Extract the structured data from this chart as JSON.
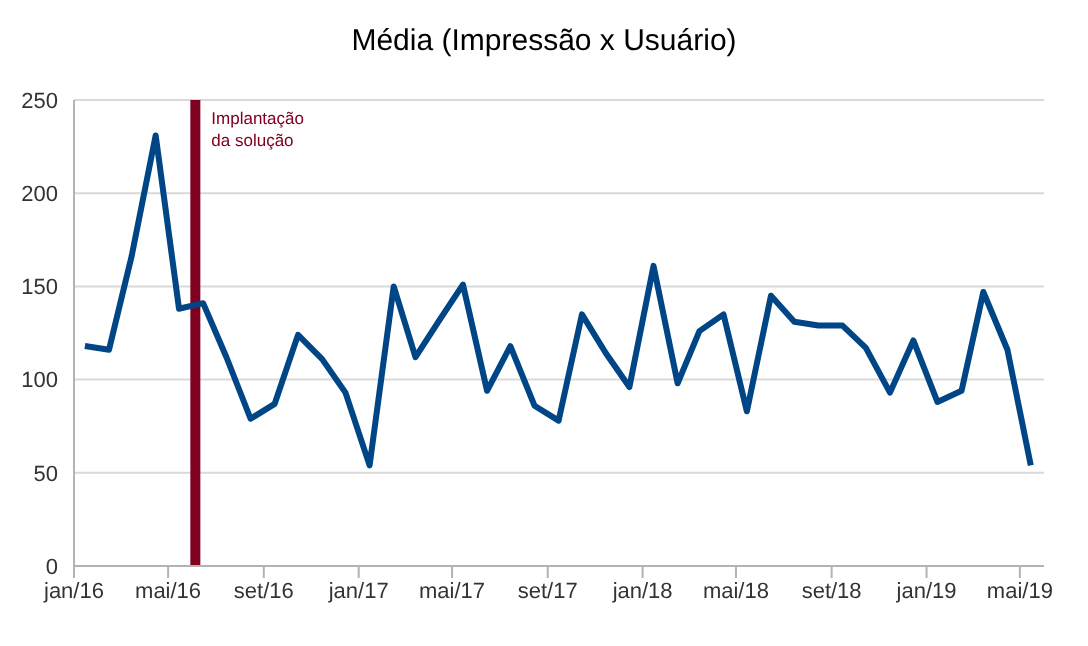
{
  "chart_data": {
    "type": "line",
    "title": "Média (Impressão x Usuário)",
    "x": [
      "2016-01-15",
      "2016-02-15",
      "2016-03-15",
      "2016-04-15",
      "2016-05-15",
      "2016-06-15",
      "2016-07-15",
      "2016-08-15",
      "2016-09-15",
      "2016-10-15",
      "2016-11-15",
      "2016-12-15",
      "2017-01-15",
      "2017-02-15",
      "2017-03-15",
      "2017-04-15",
      "2017-05-15",
      "2017-06-15",
      "2017-07-15",
      "2017-08-15",
      "2017-09-15",
      "2017-10-15",
      "2017-11-15",
      "2017-12-15",
      "2018-01-15",
      "2018-02-15",
      "2018-03-15",
      "2018-04-15",
      "2018-05-15",
      "2018-06-15",
      "2018-07-15",
      "2018-08-15",
      "2018-09-15",
      "2018-10-15",
      "2018-11-15",
      "2018-12-15",
      "2019-01-15",
      "2019-02-15",
      "2019-03-15",
      "2019-04-15",
      "2019-05-15"
    ],
    "series": [
      {
        "color": "#004586",
        "values": [
          118,
          116,
          166,
          231,
          138,
          141,
          112,
          79,
          87,
          124,
          111,
          93,
          54,
          150,
          112,
          132,
          151,
          94,
          118,
          86,
          78,
          135,
          114,
          96,
          161,
          98,
          126,
          135,
          83,
          145,
          131,
          129,
          129,
          117,
          93,
          121,
          88,
          94,
          147,
          116,
          54
        ]
      }
    ],
    "xlim": [
      "2016-01-01",
      "2019-06-01"
    ],
    "xticks": [
      {
        "value": "2016-01-01",
        "label": "jan/16"
      },
      {
        "value": "2016-05-01",
        "label": "mai/16"
      },
      {
        "value": "2016-09-01",
        "label": "set/16"
      },
      {
        "value": "2017-01-01",
        "label": "jan/17"
      },
      {
        "value": "2017-05-01",
        "label": "mai/17"
      },
      {
        "value": "2017-09-01",
        "label": "set/17"
      },
      {
        "value": "2018-01-01",
        "label": "jan/18"
      },
      {
        "value": "2018-05-01",
        "label": "mai/18"
      },
      {
        "value": "2018-09-01",
        "label": "set/18"
      },
      {
        "value": "2019-01-01",
        "label": "jan/19"
      },
      {
        "value": "2019-05-01",
        "label": "mai/19"
      }
    ],
    "ylim": [
      0,
      250
    ],
    "yticks": [
      0,
      50,
      100,
      150,
      200,
      250
    ],
    "grid": "y",
    "legend": false,
    "marker": "none",
    "line_style": "solid",
    "ref_lines": [
      {
        "axis": "x",
        "value": "2016-06-05",
        "label": "Implantação da solução",
        "color": "#800020"
      }
    ]
  }
}
